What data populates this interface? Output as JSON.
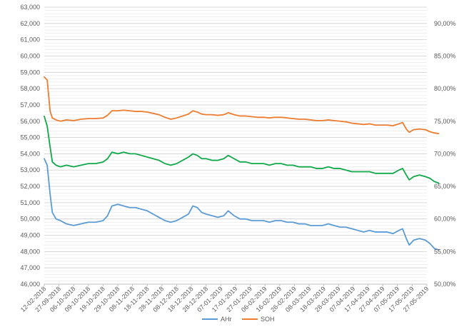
{
  "chart_data": {
    "type": "line",
    "title": "",
    "grid": true,
    "legend_position": "bottom",
    "left_axis": {
      "min": 46000,
      "max": 63000,
      "step": 1000,
      "tick_labels": [
        "46,000",
        "47,000",
        "48,000",
        "49,000",
        "50,000",
        "51,000",
        "52,000",
        "53,000",
        "54,000",
        "55,000",
        "56,000",
        "57,000",
        "58,000",
        "59,000",
        "60,000",
        "61,000",
        "62,000",
        "63,000"
      ]
    },
    "right_axis": {
      "min": 50,
      "max": 92.5,
      "step": 5,
      "tick_labels": [
        "50,00%",
        "55,00%",
        "60,00%",
        "65,00%",
        "70,00%",
        "75,00%",
        "80,00%",
        "85,00%",
        "90,00%"
      ]
    },
    "x_tick_labels": [
      "12-02-2018",
      "27-09-2018",
      "06-10-2018",
      "09-10-2018",
      "19-10-2018",
      "29-10-2018",
      "08-11-2018",
      "18-11-2018",
      "28-11-2018",
      "08-12-2018",
      "18-12-2018",
      "28-12-2018",
      "07-01-2019",
      "17-01-2019",
      "27-01-2019",
      "06-02-2019",
      "16-02-2019",
      "26-02-2019",
      "08-03-2019",
      "18-03-2019",
      "28-03-2019",
      "07-04-2019",
      "17-04-2019",
      "27-04-2019",
      "07-05-2019",
      "17-05-2019",
      "27-05-2019"
    ],
    "series": [
      {
        "name": "AHr",
        "axis": "left",
        "color": "#5b9bd5",
        "points": [
          [
            0,
            53700
          ],
          [
            0.2,
            53300
          ],
          [
            0.4,
            51500
          ],
          [
            0.55,
            50400
          ],
          [
            0.8,
            50000
          ],
          [
            1.1,
            49900
          ],
          [
            1.5,
            49700
          ],
          [
            2.0,
            49600
          ],
          [
            2.5,
            49700
          ],
          [
            3.0,
            49800
          ],
          [
            3.5,
            49800
          ],
          [
            4.0,
            49900
          ],
          [
            4.3,
            50200
          ],
          [
            4.6,
            50800
          ],
          [
            5.0,
            50900
          ],
          [
            5.4,
            50800
          ],
          [
            5.8,
            50700
          ],
          [
            6.2,
            50700
          ],
          [
            6.6,
            50600
          ],
          [
            7.0,
            50500
          ],
          [
            7.4,
            50300
          ],
          [
            7.8,
            50100
          ],
          [
            8.2,
            49900
          ],
          [
            8.6,
            49800
          ],
          [
            9.0,
            49900
          ],
          [
            9.4,
            50100
          ],
          [
            9.8,
            50300
          ],
          [
            10.1,
            50800
          ],
          [
            10.4,
            50700
          ],
          [
            10.7,
            50400
          ],
          [
            11.0,
            50300
          ],
          [
            11.4,
            50200
          ],
          [
            11.8,
            50100
          ],
          [
            12.2,
            50200
          ],
          [
            12.5,
            50500
          ],
          [
            12.9,
            50200
          ],
          [
            13.3,
            50000
          ],
          [
            13.7,
            50000
          ],
          [
            14.1,
            49900
          ],
          [
            14.5,
            49900
          ],
          [
            14.9,
            49900
          ],
          [
            15.3,
            49800
          ],
          [
            15.7,
            49900
          ],
          [
            16.1,
            49900
          ],
          [
            16.5,
            49800
          ],
          [
            16.9,
            49800
          ],
          [
            17.3,
            49700
          ],
          [
            17.7,
            49700
          ],
          [
            18.1,
            49600
          ],
          [
            18.5,
            49600
          ],
          [
            18.9,
            49600
          ],
          [
            19.3,
            49700
          ],
          [
            19.7,
            49600
          ],
          [
            20.1,
            49500
          ],
          [
            20.5,
            49500
          ],
          [
            20.9,
            49400
          ],
          [
            21.3,
            49300
          ],
          [
            21.7,
            49200
          ],
          [
            22.1,
            49300
          ],
          [
            22.5,
            49200
          ],
          [
            22.9,
            49200
          ],
          [
            23.3,
            49200
          ],
          [
            23.7,
            49100
          ],
          [
            24.1,
            49300
          ],
          [
            24.35,
            49400
          ],
          [
            24.6,
            48800
          ],
          [
            24.8,
            48400
          ],
          [
            25.1,
            48700
          ],
          [
            25.5,
            48800
          ],
          [
            25.9,
            48700
          ],
          [
            26.2,
            48500
          ],
          [
            26.5,
            48200
          ],
          [
            26.8,
            48100
          ]
        ]
      },
      {
        "name": "",
        "axis": "left",
        "color": "#11a84a",
        "points": [
          [
            0,
            56300
          ],
          [
            0.2,
            55700
          ],
          [
            0.4,
            54400
          ],
          [
            0.55,
            53500
          ],
          [
            0.8,
            53300
          ],
          [
            1.1,
            53200
          ],
          [
            1.5,
            53300
          ],
          [
            2.0,
            53200
          ],
          [
            2.5,
            53300
          ],
          [
            3.0,
            53400
          ],
          [
            3.5,
            53400
          ],
          [
            4.0,
            53500
          ],
          [
            4.3,
            53700
          ],
          [
            4.6,
            54100
          ],
          [
            5.0,
            54000
          ],
          [
            5.4,
            54100
          ],
          [
            5.8,
            54000
          ],
          [
            6.2,
            54000
          ],
          [
            6.6,
            53900
          ],
          [
            7.0,
            53800
          ],
          [
            7.4,
            53700
          ],
          [
            7.8,
            53600
          ],
          [
            8.2,
            53400
          ],
          [
            8.6,
            53300
          ],
          [
            9.0,
            53400
          ],
          [
            9.4,
            53600
          ],
          [
            9.8,
            53800
          ],
          [
            10.1,
            54000
          ],
          [
            10.4,
            53900
          ],
          [
            10.7,
            53700
          ],
          [
            11.0,
            53700
          ],
          [
            11.4,
            53600
          ],
          [
            11.8,
            53600
          ],
          [
            12.2,
            53700
          ],
          [
            12.5,
            53900
          ],
          [
            12.9,
            53700
          ],
          [
            13.3,
            53500
          ],
          [
            13.7,
            53500
          ],
          [
            14.1,
            53400
          ],
          [
            14.5,
            53400
          ],
          [
            14.9,
            53400
          ],
          [
            15.3,
            53300
          ],
          [
            15.7,
            53400
          ],
          [
            16.1,
            53400
          ],
          [
            16.5,
            53300
          ],
          [
            16.9,
            53300
          ],
          [
            17.3,
            53200
          ],
          [
            17.7,
            53200
          ],
          [
            18.1,
            53200
          ],
          [
            18.5,
            53100
          ],
          [
            18.9,
            53100
          ],
          [
            19.3,
            53200
          ],
          [
            19.7,
            53100
          ],
          [
            20.1,
            53100
          ],
          [
            20.5,
            53000
          ],
          [
            20.9,
            52900
          ],
          [
            21.3,
            52900
          ],
          [
            21.7,
            52900
          ],
          [
            22.1,
            52900
          ],
          [
            22.5,
            52800
          ],
          [
            22.9,
            52800
          ],
          [
            23.3,
            52800
          ],
          [
            23.7,
            52800
          ],
          [
            24.1,
            53000
          ],
          [
            24.35,
            53100
          ],
          [
            24.6,
            52700
          ],
          [
            24.8,
            52400
          ],
          [
            25.1,
            52600
          ],
          [
            25.5,
            52700
          ],
          [
            25.9,
            52600
          ],
          [
            26.2,
            52500
          ],
          [
            26.5,
            52300
          ],
          [
            26.8,
            52200
          ]
        ]
      },
      {
        "name": "SOH",
        "axis": "right",
        "color": "#ed7d31",
        "points": [
          [
            0,
            81.8
          ],
          [
            0.2,
            81.3
          ],
          [
            0.4,
            76.5
          ],
          [
            0.55,
            75.5
          ],
          [
            0.8,
            75.2
          ],
          [
            1.1,
            75.0
          ],
          [
            1.5,
            75.2
          ],
          [
            2.0,
            75.1
          ],
          [
            2.5,
            75.3
          ],
          [
            3.0,
            75.4
          ],
          [
            3.5,
            75.4
          ],
          [
            4.0,
            75.5
          ],
          [
            4.3,
            75.9
          ],
          [
            4.6,
            76.6
          ],
          [
            5.0,
            76.6
          ],
          [
            5.4,
            76.7
          ],
          [
            5.8,
            76.6
          ],
          [
            6.2,
            76.5
          ],
          [
            6.6,
            76.5
          ],
          [
            7.0,
            76.4
          ],
          [
            7.4,
            76.2
          ],
          [
            7.8,
            76.0
          ],
          [
            8.2,
            75.6
          ],
          [
            8.6,
            75.3
          ],
          [
            9.0,
            75.5
          ],
          [
            9.4,
            75.8
          ],
          [
            9.8,
            76.1
          ],
          [
            10.1,
            76.6
          ],
          [
            10.4,
            76.4
          ],
          [
            10.7,
            76.1
          ],
          [
            11.0,
            76.0
          ],
          [
            11.4,
            76.0
          ],
          [
            11.8,
            75.9
          ],
          [
            12.2,
            76.0
          ],
          [
            12.5,
            76.3
          ],
          [
            12.9,
            76.0
          ],
          [
            13.3,
            75.8
          ],
          [
            13.7,
            75.8
          ],
          [
            14.1,
            75.7
          ],
          [
            14.5,
            75.6
          ],
          [
            14.9,
            75.6
          ],
          [
            15.3,
            75.5
          ],
          [
            15.7,
            75.6
          ],
          [
            16.1,
            75.6
          ],
          [
            16.5,
            75.5
          ],
          [
            16.9,
            75.4
          ],
          [
            17.3,
            75.3
          ],
          [
            17.7,
            75.3
          ],
          [
            18.1,
            75.2
          ],
          [
            18.5,
            75.1
          ],
          [
            18.9,
            75.1
          ],
          [
            19.3,
            75.2
          ],
          [
            19.7,
            75.1
          ],
          [
            20.1,
            75.0
          ],
          [
            20.5,
            74.9
          ],
          [
            20.9,
            74.7
          ],
          [
            21.3,
            74.6
          ],
          [
            21.7,
            74.5
          ],
          [
            22.1,
            74.6
          ],
          [
            22.5,
            74.4
          ],
          [
            22.9,
            74.4
          ],
          [
            23.3,
            74.4
          ],
          [
            23.7,
            74.3
          ],
          [
            24.1,
            74.6
          ],
          [
            24.35,
            74.8
          ],
          [
            24.6,
            73.8
          ],
          [
            24.8,
            73.3
          ],
          [
            25.1,
            73.7
          ],
          [
            25.5,
            73.8
          ],
          [
            25.9,
            73.7
          ],
          [
            26.2,
            73.4
          ],
          [
            26.5,
            73.2
          ],
          [
            26.8,
            73.1
          ]
        ]
      }
    ],
    "legend": [
      {
        "label": "AHr",
        "color": "#5b9bd5"
      },
      {
        "label": "SOH",
        "color": "#ed7d31"
      }
    ]
  }
}
